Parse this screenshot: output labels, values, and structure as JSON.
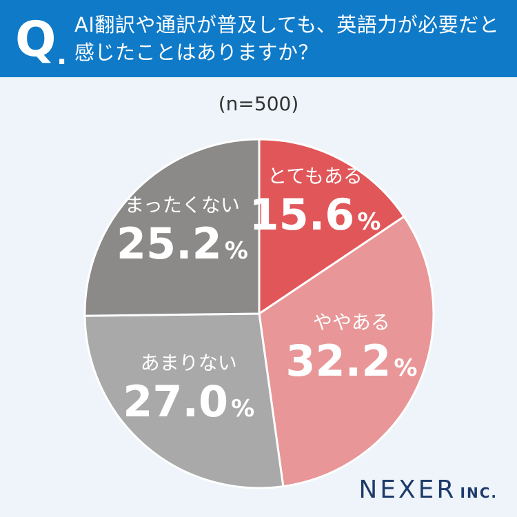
{
  "header": {
    "q_letter": "Q",
    "q_dot": ".",
    "question": "AI翻訳や通訳が普及しても、英語力が必要だと感じたことはありますか？",
    "background": "#0f7ac8"
  },
  "chart_data": {
    "type": "pie",
    "subtitle": "(n=500)",
    "unit": "%",
    "slices": [
      {
        "label": "とてもある",
        "value": 15.6,
        "value_text": "15.6",
        "color": "#e15659"
      },
      {
        "label": "ややある",
        "value": 32.2,
        "value_text": "32.2",
        "color": "#e89697"
      },
      {
        "label": "あまりない",
        "value": 27.0,
        "value_text": "27.0",
        "color": "#a9a9a9"
      },
      {
        "label": "まったくない",
        "value": 25.2,
        "value_text": "25.2",
        "color": "#8c8989"
      }
    ]
  },
  "logo": {
    "main": "NEXER",
    "sub": "INC."
  }
}
